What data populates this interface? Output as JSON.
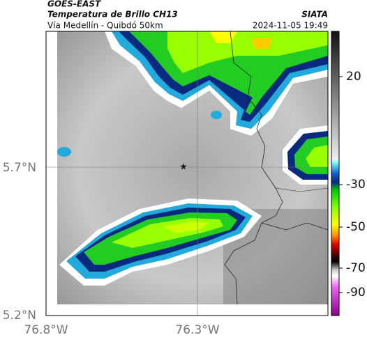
{
  "header": {
    "source": "GOES-EAST",
    "title": "Temperatura de Brillo CH13",
    "subtitle": "Vía Medellín - Quibdó 50km",
    "brand": "SIATA",
    "datetime": "2024-11-05 19:49"
  },
  "axes": {
    "lat_labels": [
      "5.7°N",
      "5.2°N"
    ],
    "lon_labels": [
      "76.8°W",
      "76.3°W"
    ]
  },
  "colorbar": {
    "ticks": [
      20,
      -30,
      -50,
      -70,
      -90
    ]
  }
}
